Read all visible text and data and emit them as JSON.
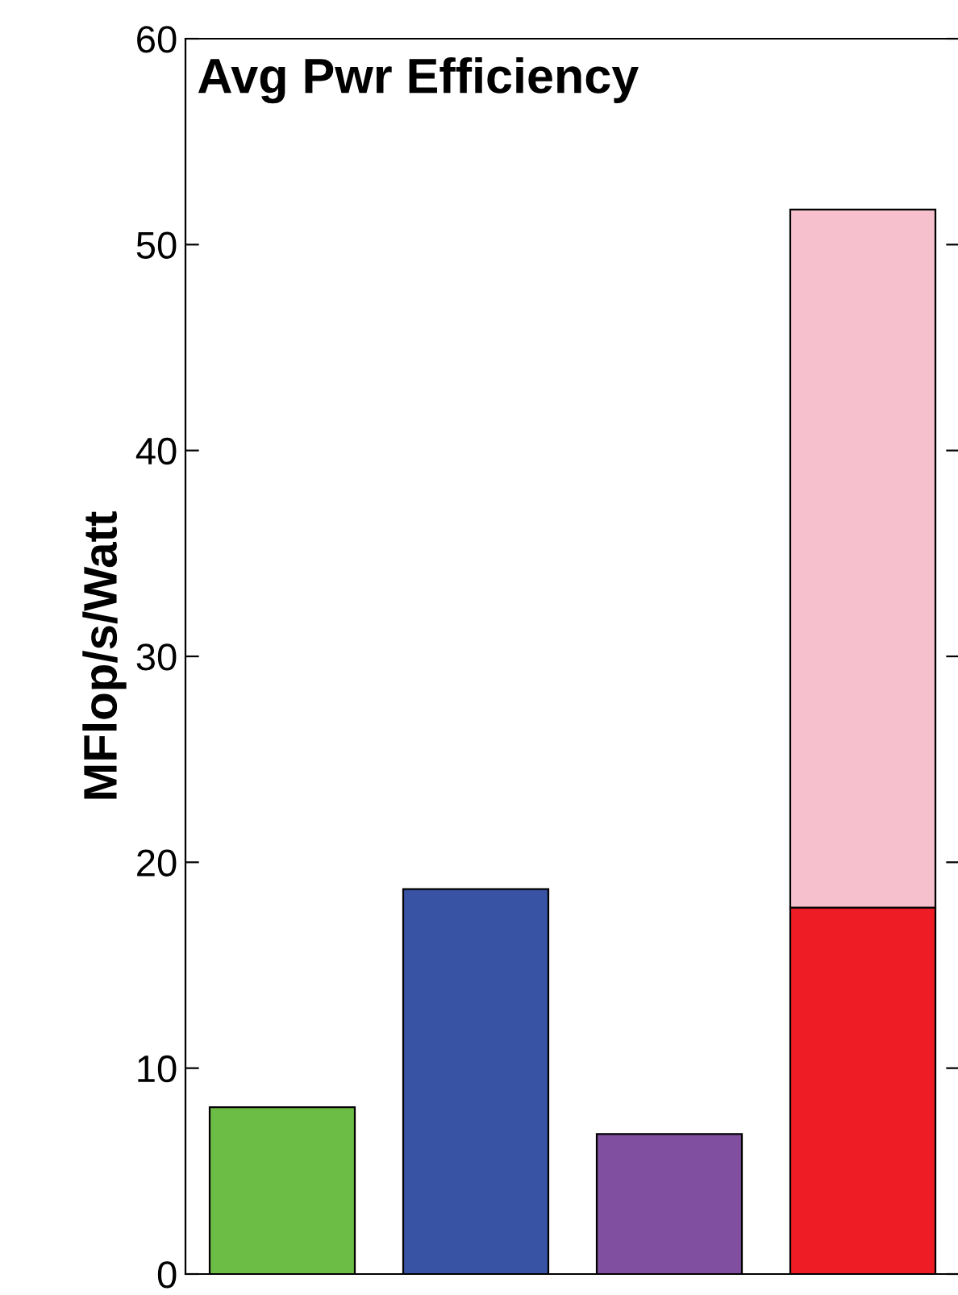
{
  "chart_data": {
    "type": "bar",
    "title": "Avg Pwr Efficiency",
    "ylabel": "MFlop/s/Watt",
    "categories": [
      null,
      null,
      null,
      null
    ],
    "stacked": true,
    "series": [
      {
        "colors": [
          "#6bbd45",
          "#3853a4",
          "#804fa0",
          "#ee1c25"
        ],
        "values": [
          8.1,
          18.7,
          6.8,
          17.8
        ]
      },
      {
        "colors": [
          "#f6c0cc",
          "#f6c0cc",
          "#f6c0cc",
          "#f6c0cc"
        ],
        "values": [
          null,
          null,
          null,
          33.9
        ]
      }
    ],
    "ylim": [
      0,
      60
    ],
    "yticks": [
      0,
      10,
      20,
      30,
      40,
      50,
      60
    ],
    "grid": false,
    "legend": false
  }
}
